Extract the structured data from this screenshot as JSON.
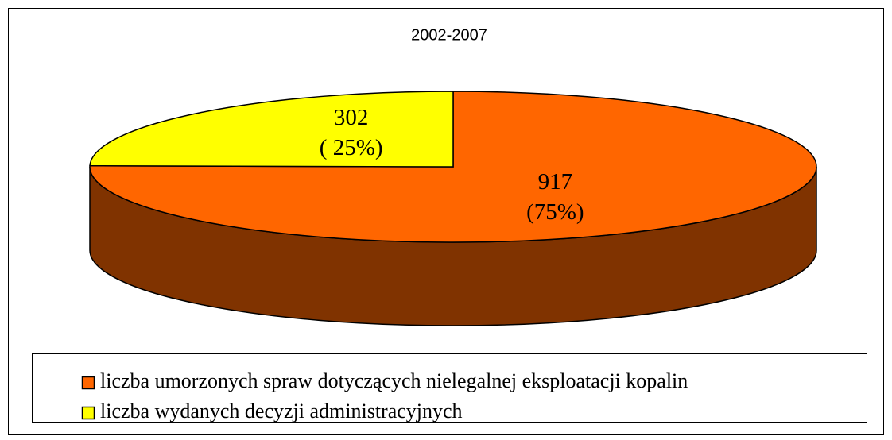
{
  "chart_data": {
    "type": "pie3d",
    "title": "2002-2007",
    "categories": [
      "liczba umorzonych spraw dotyczących nielegalnej eksploatacji kopalin",
      "liczba wydanych decyzji administracyjnych"
    ],
    "values": [
      917,
      302
    ],
    "percent_labels": [
      "(75%)",
      "( 25%)"
    ],
    "colors": [
      "#ff6600",
      "#ffff00"
    ],
    "legend": "bottom"
  }
}
